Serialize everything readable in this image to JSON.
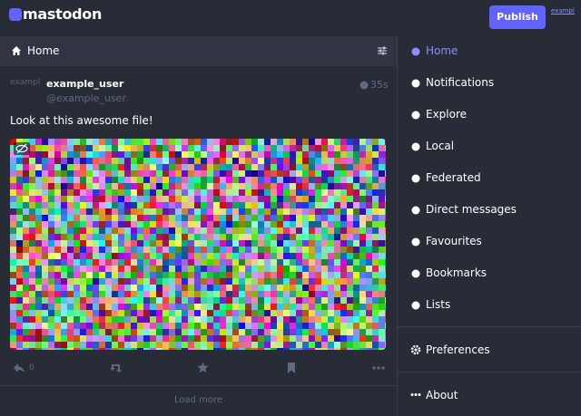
{
  "header": {
    "logo": "mastodon",
    "publish_button": "Publish",
    "account_link": "exampl"
  },
  "column": {
    "title": "Home"
  },
  "status": {
    "avatar_alt": "exampl",
    "display_name": "example_user",
    "handle": "@example_user",
    "time": "35s",
    "content": "Look at this awesome file!",
    "reply_count": 0
  },
  "load_more": "Load more",
  "navigation": {
    "items": [
      "Home",
      "Notifications",
      "Explore",
      "Local",
      "Federated",
      "Direct messages",
      "Favourites",
      "Bookmarks",
      "Lists"
    ],
    "preferences": "Preferences",
    "about": "About"
  }
}
